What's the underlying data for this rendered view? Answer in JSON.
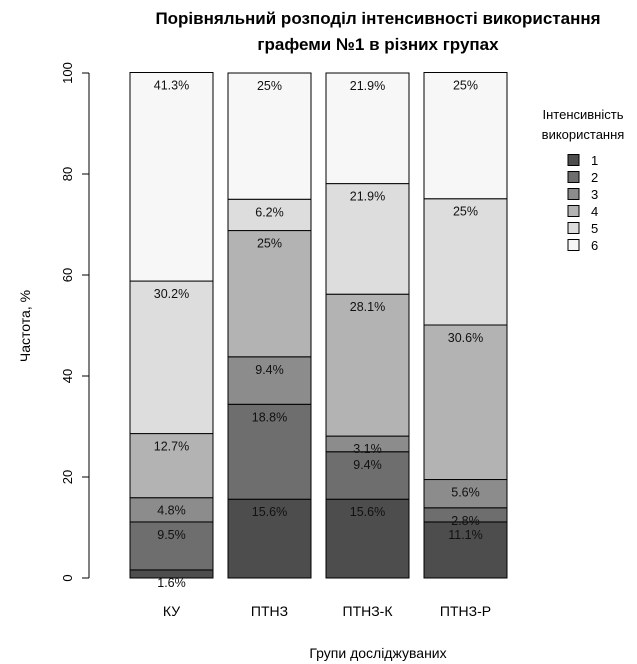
{
  "chart_data": {
    "type": "bar",
    "stacked": true,
    "title_lines": [
      "Порівняльний розподіл інтенсивності використання",
      "графеми №1 в різних групах"
    ],
    "xlabel": "Групи досліджуваних",
    "ylabel": "Частота, %",
    "ylim": [
      0,
      100
    ],
    "yticks": [
      "0",
      "20",
      "40",
      "60",
      "80",
      "100"
    ],
    "grid": false,
    "legend_position": "right",
    "legend_title_lines": [
      "Інтенсивність",
      "використання"
    ],
    "categories": [
      "КУ",
      "ПТНЗ",
      "ПТНЗ-К",
      "ПТНЗ-Р"
    ],
    "series": [
      {
        "name": "1",
        "color": "#4d4d4d",
        "values": [
          1.6,
          15.6,
          15.6,
          11.1
        ],
        "labels": [
          "1.6%",
          "15.6%",
          "15.6%",
          "11.1%"
        ]
      },
      {
        "name": "2",
        "color": "#6e6e6e",
        "values": [
          9.5,
          18.8,
          9.4,
          2.8
        ],
        "labels": [
          "9.5%",
          "18.8%",
          "9.4%",
          "2.8%"
        ]
      },
      {
        "name": "3",
        "color": "#8c8c8c",
        "values": [
          4.8,
          9.4,
          3.1,
          5.6
        ],
        "labels": [
          "4.8%",
          "9.4%",
          "3.1%",
          "5.6%"
        ]
      },
      {
        "name": "4",
        "color": "#b3b3b3",
        "values": [
          12.7,
          25,
          28.1,
          30.6
        ],
        "labels": [
          "12.7%",
          "25%",
          "28.1%",
          "30.6%"
        ]
      },
      {
        "name": "5",
        "color": "#dddddd",
        "values": [
          30.2,
          6.2,
          21.9,
          25
        ],
        "labels": [
          "30.2%",
          "6.2%",
          "21.9%",
          "25%"
        ]
      },
      {
        "name": "6",
        "color": "#f7f7f7",
        "values": [
          41.3,
          25,
          21.9,
          25
        ],
        "labels": [
          "41.3%",
          "25%",
          "21.9%",
          "25%"
        ]
      }
    ]
  }
}
